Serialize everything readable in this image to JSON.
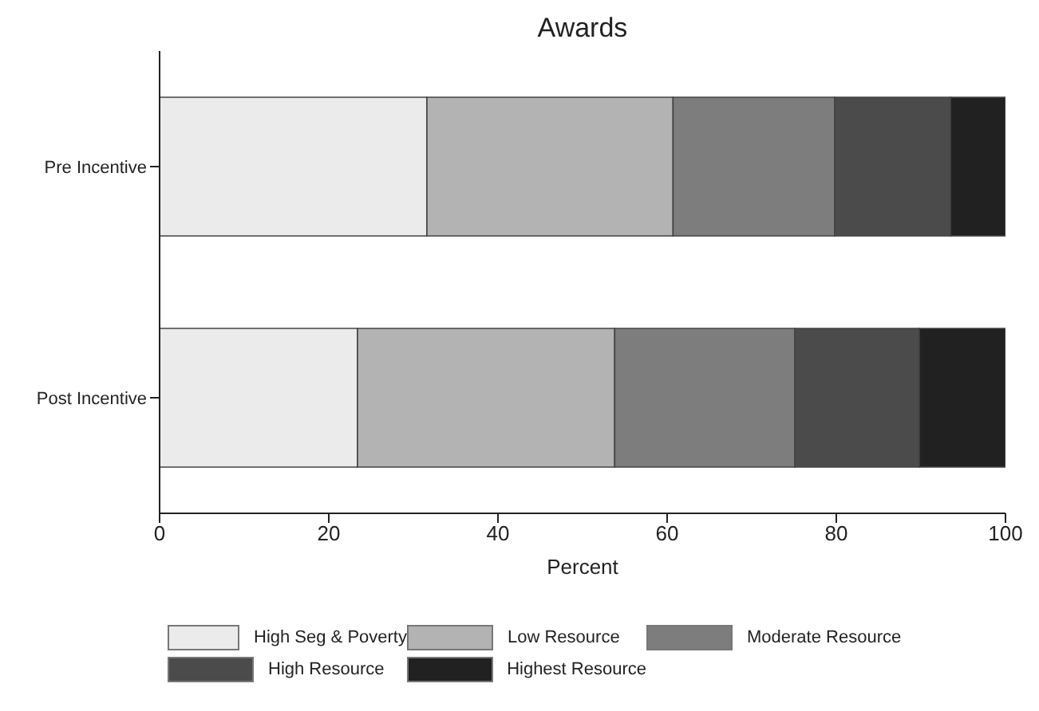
{
  "chart_data": {
    "type": "bar",
    "orientation": "horizontal",
    "stacked": true,
    "title": "Awards",
    "xlabel": "Percent",
    "categories": [
      "Pre Incentive",
      "Post Incentive"
    ],
    "series": [
      {
        "name": "High Seg & Poverty",
        "color": "#ebebeb",
        "values": [
          31.6,
          23.4
        ]
      },
      {
        "name": "Low Resource",
        "color": "#b3b3b3",
        "values": [
          29.1,
          30.4
        ]
      },
      {
        "name": "Moderate Resource",
        "color": "#7d7d7d",
        "values": [
          19.1,
          21.3
        ]
      },
      {
        "name": "High Resource",
        "color": "#4b4b4b",
        "values": [
          13.7,
          14.7
        ]
      },
      {
        "name": "Highest Resource",
        "color": "#212121",
        "values": [
          6.5,
          10.2
        ]
      }
    ],
    "xlim": [
      0,
      100
    ],
    "xticks": [
      0,
      20,
      40,
      60,
      80,
      100
    ],
    "grid": false,
    "legend": "bottom"
  }
}
